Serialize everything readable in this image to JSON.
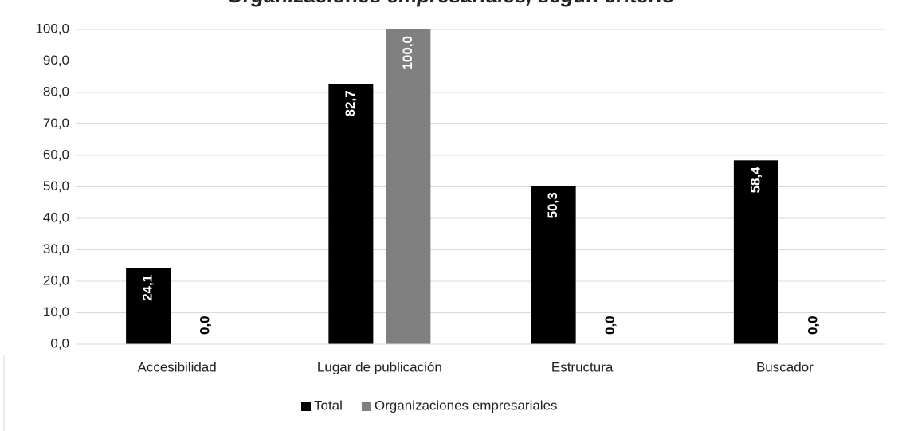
{
  "chart_data": {
    "type": "bar",
    "title": "Organizaciones empresariales, según criterio",
    "categories": [
      "Accesibilidad",
      "Lugar de publicación",
      "Estructura",
      "Buscador"
    ],
    "series": [
      {
        "name": "Total",
        "color": "#000000",
        "values": [
          24.1,
          82.7,
          50.3,
          58.4
        ],
        "value_labels": [
          "24,1",
          "82,7",
          "50,3",
          "58,4"
        ]
      },
      {
        "name": "Organizaciones empresariales",
        "color": "#808080",
        "values": [
          0,
          100,
          0,
          0
        ],
        "value_labels": [
          "0,0",
          "100,0",
          "0,0",
          "0,0"
        ]
      }
    ],
    "ylim": [
      0,
      100
    ],
    "yticks": [
      {
        "value": 0,
        "label": "0,0"
      },
      {
        "value": 10,
        "label": "10,0"
      },
      {
        "value": 20,
        "label": "20,0"
      },
      {
        "value": 30,
        "label": "30,0"
      },
      {
        "value": 40,
        "label": "40,0"
      },
      {
        "value": 50,
        "label": "50,0"
      },
      {
        "value": 60,
        "label": "60,0"
      },
      {
        "value": 70,
        "label": "70,0"
      },
      {
        "value": 80,
        "label": "80,0"
      },
      {
        "value": 90,
        "label": "90,0"
      },
      {
        "value": 100,
        "label": "100,0"
      }
    ],
    "grid": true,
    "legend": "bottom"
  }
}
